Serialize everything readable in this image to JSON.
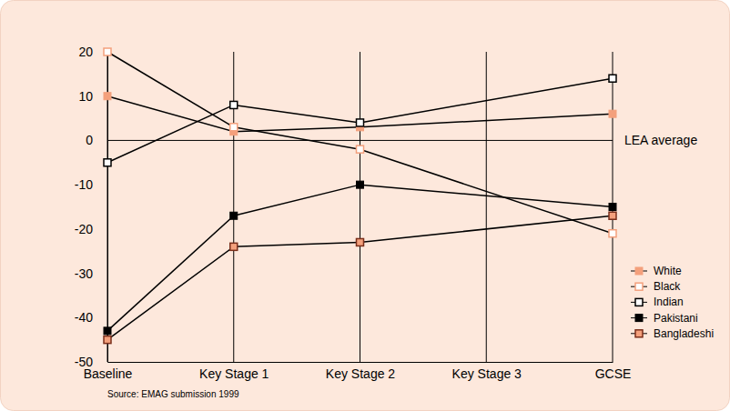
{
  "chart_data": {
    "type": "line",
    "categories": [
      "Baseline",
      "Key Stage 1",
      "Key Stage 2",
      "Key Stage 3",
      "GCSE"
    ],
    "series": [
      {
        "name": "White",
        "color": "#f4a07c",
        "marker": "square-filled",
        "values": [
          10,
          2,
          3,
          null,
          6
        ]
      },
      {
        "name": "Black",
        "color": "#f4a07c",
        "marker": "square-open",
        "values": [
          20,
          3,
          -2,
          null,
          -21
        ]
      },
      {
        "name": "Indian",
        "color": "#000000",
        "marker": "square-open",
        "values": [
          -5,
          8,
          4,
          null,
          14
        ]
      },
      {
        "name": "Pakistani",
        "color": "#000000",
        "marker": "square-filled",
        "values": [
          -43,
          -17,
          -10,
          null,
          -15
        ]
      },
      {
        "name": "Bangladeshi",
        "color": "#f4a07c",
        "marker": "square-edged",
        "values": [
          -45,
          -24,
          -23,
          null,
          -17
        ]
      }
    ],
    "ylim": [
      -50,
      20
    ],
    "yticks": [
      -50,
      -40,
      -30,
      -20,
      -10,
      0,
      10,
      20
    ],
    "grid": "x",
    "legend": "lower right",
    "annotations": [
      {
        "text": "LEA average",
        "y": 0
      }
    ],
    "source": "Source: EMAG submission 1999"
  }
}
